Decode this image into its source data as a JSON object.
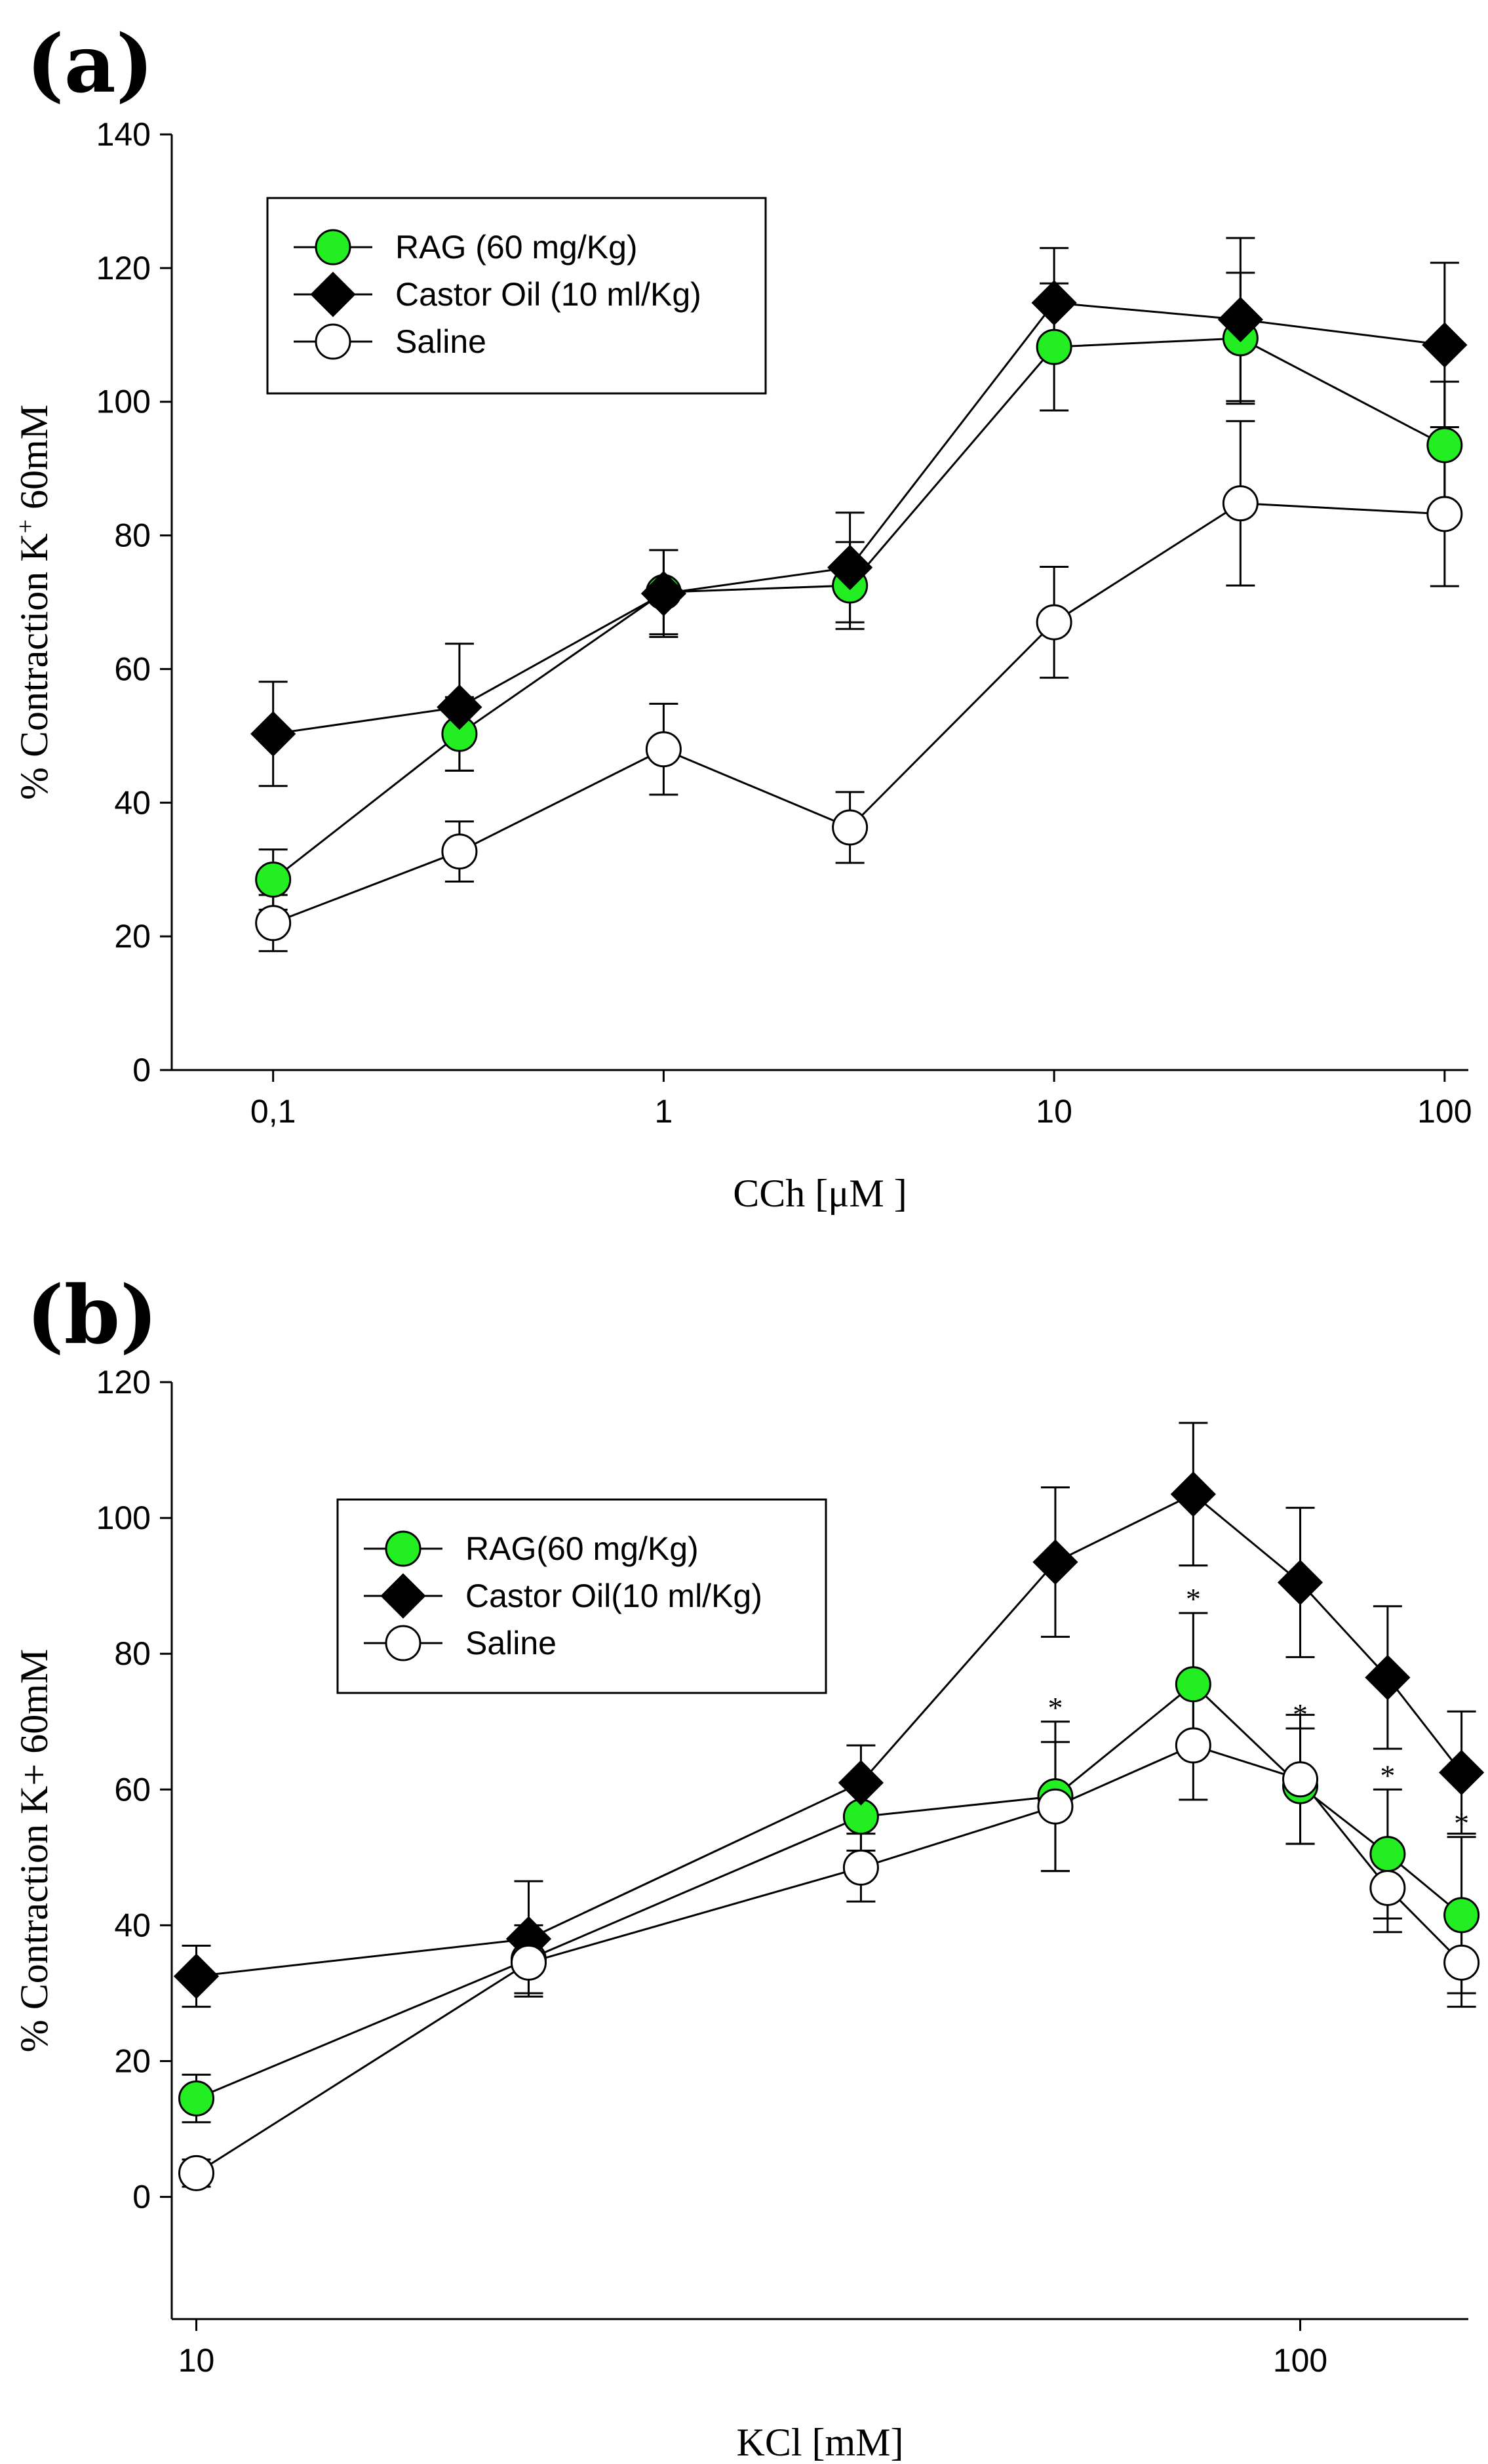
{
  "chart_data": [
    {
      "panel_label": "(a)",
      "type": "line",
      "xscale": "log",
      "xlim": [
        0.055,
        115
      ],
      "ylim": [
        0,
        140
      ],
      "xlabel": "CCh [μM ]",
      "ylabel": "% Contraction K",
      "ylabel_superscript": "+",
      "ylabel_suffix": " 60mM",
      "x_ticks": [
        {
          "value": 0.1,
          "label": "0,1"
        },
        {
          "value": 1,
          "label": "1"
        },
        {
          "value": 10,
          "label": "10"
        },
        {
          "value": 100,
          "label": "100"
        }
      ],
      "y_ticks": [
        0,
        20,
        40,
        60,
        80,
        100,
        120,
        140
      ],
      "legend": {
        "position": "top-left"
      },
      "x": [
        0.1,
        0.3,
        1,
        3,
        10,
        30,
        100
      ],
      "series": [
        {
          "name": "RAG (60 mg/Kg)",
          "marker": "circle",
          "color": "#22ee22",
          "values": [
            28.5,
            50.3,
            71.5,
            72.5,
            108.2,
            109.5,
            93.5
          ],
          "errors": [
            4.5,
            5.5,
            6.3,
            6.5,
            9.5,
            9.8,
            9.5
          ],
          "stars": []
        },
        {
          "name": "Castor Oil (10 ml/Kg)",
          "marker": "diamond",
          "color": "#000000",
          "values": [
            50.3,
            54.3,
            71.3,
            75.2,
            114.8,
            112.3,
            108.5
          ],
          "errors": [
            7.8,
            9.5,
            6.5,
            8.2,
            8.2,
            12.2,
            12.3
          ],
          "stars": []
        },
        {
          "name": "Saline",
          "marker": "circle",
          "color": "#ffffff",
          "values": [
            22.0,
            32.7,
            48.0,
            36.3,
            67.0,
            84.8,
            83.2
          ],
          "errors": [
            4.2,
            4.5,
            6.8,
            5.3,
            8.3,
            12.3,
            10.8
          ],
          "stars": []
        }
      ]
    },
    {
      "panel_label": "(b)",
      "type": "line",
      "xscale": "log",
      "xlim": [
        9.5,
        142
      ],
      "ylim": [
        -18,
        120
      ],
      "xlabel": "KCl [mM]",
      "ylabel": "% Contraction K+ 60mM",
      "ylabel_superscript": "",
      "ylabel_suffix": "",
      "x_ticks": [
        {
          "value": 10,
          "label": "10"
        },
        {
          "value": 100,
          "label": "100"
        }
      ],
      "y_ticks": [
        0,
        20,
        40,
        60,
        80,
        100,
        120
      ],
      "legend": {
        "position": "upper-left"
      },
      "x": [
        10,
        20,
        40,
        60,
        80,
        100,
        120,
        140
      ],
      "series": [
        {
          "name": "RAG(60 mg/Kg)",
          "marker": "circle",
          "color": "#22ee22",
          "values": [
            14.5,
            35.0,
            56.0,
            59.0,
            75.5,
            60.5,
            50.5,
            41.5
          ],
          "errors": [
            3.5,
            5.0,
            5.0,
            11.0,
            10.5,
            8.5,
            9.5,
            11.5
          ],
          "stars": [
            false,
            false,
            false,
            true,
            true,
            true,
            true,
            true
          ]
        },
        {
          "name": "Castor Oil(10 ml/Kg)",
          "marker": "diamond",
          "color": "#000000",
          "values": [
            32.5,
            38.0,
            61.0,
            93.5,
            103.5,
            90.5,
            76.5,
            62.5
          ],
          "errors": [
            4.5,
            8.5,
            5.5,
            11.0,
            10.5,
            11.0,
            10.5,
            9.0
          ],
          "stars": []
        },
        {
          "name": "Saline",
          "marker": "circle",
          "color": "#ffffff",
          "values": [
            3.5,
            34.5,
            48.5,
            57.5,
            66.5,
            61.5,
            45.5,
            34.5
          ],
          "errors": [
            2.0,
            4.5,
            5.0,
            9.5,
            8.0,
            9.5,
            6.5,
            6.5
          ],
          "stars": []
        }
      ]
    }
  ]
}
